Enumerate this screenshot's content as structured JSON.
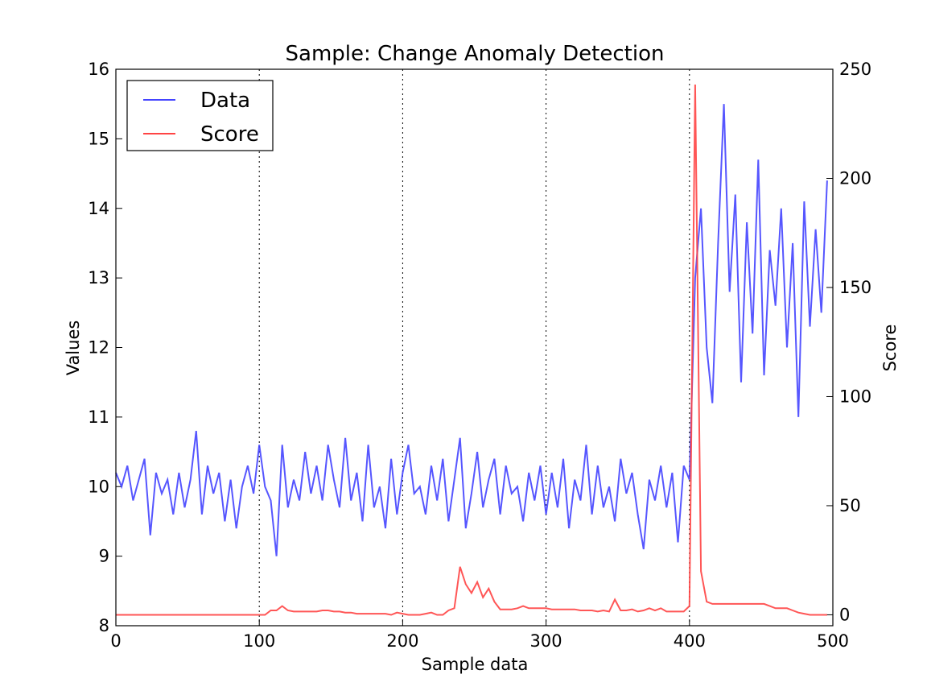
{
  "chart_data": {
    "type": "line",
    "title": "Sample: Change Anomaly Detection",
    "xlabel": "Sample data",
    "ylabel": "Values",
    "y2label": "Score",
    "xlim": [
      0,
      500
    ],
    "xticks": [
      0,
      100,
      200,
      300,
      400,
      500
    ],
    "ylim": [
      8,
      16
    ],
    "yticks": [
      8,
      9,
      10,
      11,
      12,
      13,
      14,
      15,
      16
    ],
    "y2lim": [
      -5,
      250
    ],
    "y2ticks": [
      0,
      50,
      100,
      150,
      200,
      250
    ],
    "xgrid": true,
    "legend": "upper left",
    "x": [
      0,
      4,
      8,
      12,
      16,
      20,
      24,
      28,
      32,
      36,
      40,
      44,
      48,
      52,
      56,
      60,
      64,
      68,
      72,
      76,
      80,
      84,
      88,
      92,
      96,
      100,
      104,
      108,
      112,
      116,
      120,
      124,
      128,
      132,
      136,
      140,
      144,
      148,
      152,
      156,
      160,
      164,
      168,
      172,
      176,
      180,
      184,
      188,
      192,
      196,
      200,
      204,
      208,
      212,
      216,
      220,
      224,
      228,
      232,
      236,
      240,
      244,
      248,
      252,
      256,
      260,
      264,
      268,
      272,
      276,
      280,
      284,
      288,
      292,
      296,
      300,
      304,
      308,
      312,
      316,
      320,
      324,
      328,
      332,
      336,
      340,
      344,
      348,
      352,
      356,
      360,
      364,
      368,
      372,
      376,
      380,
      384,
      388,
      392,
      396,
      400,
      404,
      408,
      412,
      416,
      420,
      424,
      428,
      432,
      436,
      440,
      444,
      448,
      452,
      456,
      460,
      464,
      468,
      472,
      476,
      480,
      484,
      488,
      492,
      496
    ],
    "series": [
      {
        "name": "Data",
        "color": "#4444ff",
        "values": [
          10.2,
          10.0,
          10.3,
          9.8,
          10.1,
          10.4,
          9.3,
          10.2,
          9.9,
          10.1,
          9.6,
          10.2,
          9.7,
          10.1,
          10.8,
          9.6,
          10.3,
          9.9,
          10.2,
          9.5,
          10.1,
          9.4,
          10.0,
          10.3,
          9.9,
          10.6,
          10.0,
          9.8,
          9.0,
          10.6,
          9.7,
          10.1,
          9.8,
          10.5,
          9.9,
          10.3,
          9.8,
          10.6,
          10.1,
          9.7,
          10.7,
          9.8,
          10.2,
          9.5,
          10.6,
          9.7,
          10.0,
          9.4,
          10.4,
          9.6,
          10.2,
          10.6,
          9.9,
          10.0,
          9.6,
          10.3,
          9.8,
          10.4,
          9.5,
          10.1,
          10.7,
          9.4,
          9.9,
          10.5,
          9.7,
          10.1,
          10.4,
          9.6,
          10.3,
          9.9,
          10.0,
          9.5,
          10.2,
          9.8,
          10.3,
          9.6,
          10.2,
          9.7,
          10.4,
          9.4,
          10.1,
          9.8,
          10.6,
          9.6,
          10.3,
          9.7,
          10.0,
          9.5,
          10.4,
          9.9,
          10.2,
          9.6,
          9.1,
          10.1,
          9.8,
          10.3,
          9.7,
          10.2,
          9.2,
          10.3,
          10.1,
          13.0,
          14.0,
          12.0,
          11.2,
          13.5,
          15.5,
          12.8,
          14.2,
          11.5,
          13.8,
          12.2,
          14.7,
          11.6,
          13.4,
          12.6,
          14.0,
          12.0,
          13.5,
          11.0,
          14.1,
          12.3,
          13.7,
          12.5,
          14.4
        ]
      },
      {
        "name": "Score",
        "color": "#ff4444",
        "axis": "y2",
        "values": [
          0,
          0,
          0,
          0,
          0,
          0,
          0,
          0,
          0,
          0,
          0,
          0,
          0,
          0,
          0,
          0,
          0,
          0,
          0,
          0,
          0,
          0,
          0,
          0,
          0,
          0,
          0,
          2,
          2,
          4,
          2,
          1.5,
          1.5,
          1.5,
          1.5,
          1.5,
          2,
          2,
          1.5,
          1.5,
          1,
          1,
          0.5,
          0.5,
          0.5,
          0.5,
          0.5,
          0.5,
          0,
          1,
          0.5,
          0,
          0,
          0,
          0.5,
          1,
          0,
          0,
          2,
          3,
          22,
          14,
          10,
          15,
          8,
          12,
          6,
          2.5,
          2.5,
          2.5,
          3,
          4,
          3,
          3,
          3,
          3,
          2.5,
          2.5,
          2.5,
          2.5,
          2.5,
          2,
          2,
          2,
          1.5,
          2,
          1.5,
          7,
          2,
          2,
          2.5,
          1.5,
          2,
          3,
          2,
          3,
          1.5,
          1.5,
          1.5,
          1.5,
          4,
          243,
          20,
          6,
          5,
          5,
          5,
          5,
          5,
          5,
          5,
          5,
          5,
          5,
          4,
          3,
          3,
          3,
          2,
          1,
          0.5,
          0,
          0,
          0,
          0
        ]
      }
    ]
  }
}
